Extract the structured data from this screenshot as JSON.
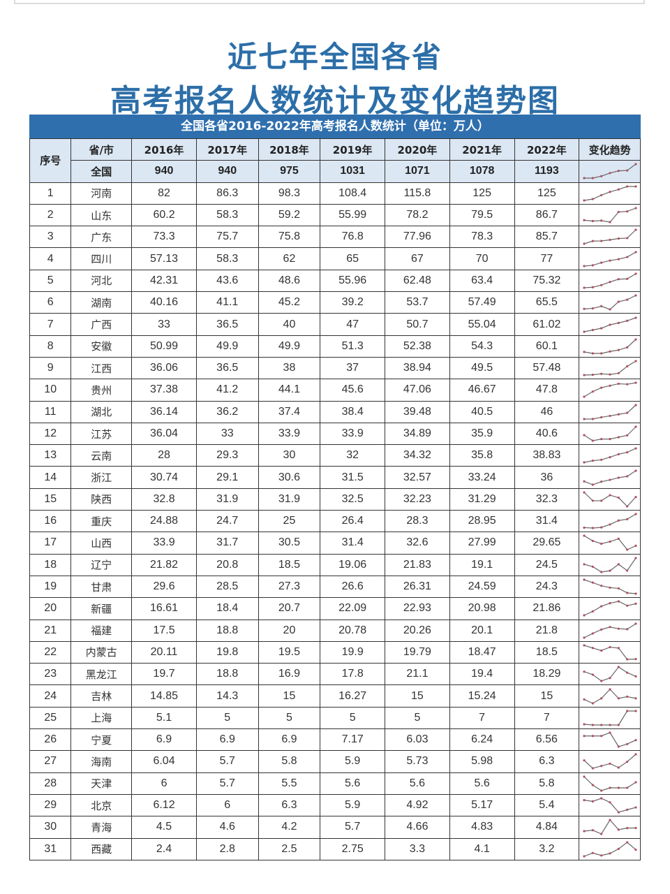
{
  "title_line1": "近七年全国各省",
  "title_line2": "高考报名人数统计及变化趋势图",
  "banner": "全国各省2016-2022年高考报名人数统计（单位：万人）",
  "header": {
    "index": "序号",
    "province": "省/市",
    "years": [
      "2016年",
      "2017年",
      "2018年",
      "2019年",
      "2020年",
      "2021年",
      "2022年"
    ],
    "trend": "变化趋势"
  },
  "national": {
    "name": "全国",
    "values": [
      "940",
      "940",
      "975",
      "1031",
      "1071",
      "1078",
      "1193"
    ]
  },
  "rows": [
    {
      "idx": "1",
      "name": "河南",
      "values": [
        "82",
        "86.3",
        "98.3",
        "108.4",
        "115.8",
        "125",
        "125"
      ]
    },
    {
      "idx": "2",
      "name": "山东",
      "values": [
        "60.2",
        "58.3",
        "59.2",
        "55.99",
        "78.2",
        "79.5",
        "86.7"
      ]
    },
    {
      "idx": "3",
      "name": "广东",
      "values": [
        "73.3",
        "75.7",
        "75.8",
        "76.8",
        "77.96",
        "78.3",
        "85.7"
      ]
    },
    {
      "idx": "4",
      "name": "四川",
      "values": [
        "57.13",
        "58.3",
        "62",
        "65",
        "67",
        "70",
        "77"
      ]
    },
    {
      "idx": "5",
      "name": "河北",
      "values": [
        "42.31",
        "43.6",
        "48.6",
        "55.96",
        "62.48",
        "63.4",
        "75.32"
      ]
    },
    {
      "idx": "6",
      "name": "湖南",
      "values": [
        "40.16",
        "41.1",
        "45.2",
        "39.2",
        "53.7",
        "57.49",
        "65.5"
      ]
    },
    {
      "idx": "7",
      "name": "广西",
      "values": [
        "33",
        "36.5",
        "40",
        "47",
        "50.7",
        "55.04",
        "61.02"
      ]
    },
    {
      "idx": "8",
      "name": "安徽",
      "values": [
        "50.99",
        "49.9",
        "49.9",
        "51.3",
        "52.38",
        "54.3",
        "60.1"
      ]
    },
    {
      "idx": "9",
      "name": "江西",
      "values": [
        "36.06",
        "36.5",
        "38",
        "37",
        "38.94",
        "49.5",
        "57.48"
      ]
    },
    {
      "idx": "10",
      "name": "贵州",
      "values": [
        "37.38",
        "41.2",
        "44.1",
        "45.6",
        "47.06",
        "46.67",
        "47.8"
      ]
    },
    {
      "idx": "11",
      "name": "湖北",
      "values": [
        "36.14",
        "36.2",
        "37.4",
        "38.4",
        "39.48",
        "40.5",
        "46"
      ]
    },
    {
      "idx": "12",
      "name": "江苏",
      "values": [
        "36.04",
        "33",
        "33.9",
        "33.9",
        "34.89",
        "35.9",
        "40.6"
      ]
    },
    {
      "idx": "13",
      "name": "云南",
      "values": [
        "28",
        "29.3",
        "30",
        "32",
        "34.32",
        "35.8",
        "38.83"
      ]
    },
    {
      "idx": "14",
      "name": "浙江",
      "values": [
        "30.74",
        "29.1",
        "30.6",
        "31.5",
        "32.57",
        "33.24",
        "36"
      ]
    },
    {
      "idx": "15",
      "name": "陕西",
      "values": [
        "32.8",
        "31.9",
        "31.9",
        "32.5",
        "32.23",
        "31.29",
        "32.3"
      ]
    },
    {
      "idx": "16",
      "name": "重庆",
      "values": [
        "24.88",
        "24.7",
        "25",
        "26.4",
        "28.3",
        "28.95",
        "31.4"
      ]
    },
    {
      "idx": "17",
      "name": "山西",
      "values": [
        "33.9",
        "31.7",
        "30.5",
        "31.4",
        "32.6",
        "27.99",
        "29.65"
      ]
    },
    {
      "idx": "18",
      "name": "辽宁",
      "values": [
        "21.82",
        "20.8",
        "18.5",
        "19.06",
        "21.83",
        "19.1",
        "24.5"
      ]
    },
    {
      "idx": "19",
      "name": "甘肃",
      "values": [
        "29.6",
        "28.5",
        "27.3",
        "26.6",
        "26.31",
        "24.59",
        "24.3"
      ]
    },
    {
      "idx": "20",
      "name": "新疆",
      "values": [
        "16.61",
        "18.4",
        "20.7",
        "22.09",
        "22.93",
        "20.98",
        "21.86"
      ]
    },
    {
      "idx": "21",
      "name": "福建",
      "values": [
        "17.5",
        "18.8",
        "20",
        "20.78",
        "20.26",
        "20.1",
        "21.8"
      ]
    },
    {
      "idx": "22",
      "name": "内蒙古",
      "values": [
        "20.11",
        "19.8",
        "19.5",
        "19.9",
        "19.79",
        "18.47",
        "18.5"
      ]
    },
    {
      "idx": "23",
      "name": "黑龙江",
      "values": [
        "19.7",
        "18.8",
        "16.9",
        "17.8",
        "21.1",
        "19.4",
        "18.29"
      ]
    },
    {
      "idx": "24",
      "name": "吉林",
      "values": [
        "14.85",
        "14.3",
        "15",
        "16.27",
        "15",
        "15.24",
        "15"
      ]
    },
    {
      "idx": "25",
      "name": "上海",
      "values": [
        "5.1",
        "5",
        "5",
        "5",
        "5",
        "7",
        "7"
      ]
    },
    {
      "idx": "26",
      "name": "宁夏",
      "values": [
        "6.9",
        "6.9",
        "6.9",
        "7.17",
        "6.03",
        "6.24",
        "6.56"
      ]
    },
    {
      "idx": "27",
      "name": "海南",
      "values": [
        "6.04",
        "5.7",
        "5.8",
        "5.9",
        "5.73",
        "5.98",
        "6.3"
      ]
    },
    {
      "idx": "28",
      "name": "天津",
      "values": [
        "6",
        "5.7",
        "5.5",
        "5.6",
        "5.6",
        "5.6",
        "5.8"
      ]
    },
    {
      "idx": "29",
      "name": "北京",
      "values": [
        "6.12",
        "6",
        "6.3",
        "5.9",
        "4.92",
        "5.17",
        "5.4"
      ]
    },
    {
      "idx": "30",
      "name": "青海",
      "values": [
        "4.5",
        "4.6",
        "4.2",
        "5.7",
        "4.66",
        "4.83",
        "4.84"
      ]
    },
    {
      "idx": "31",
      "name": "西藏",
      "values": [
        "2.4",
        "2.8",
        "2.5",
        "2.75",
        "3.3",
        "4.1",
        "3.2"
      ]
    }
  ],
  "colors": {
    "title": "#2c6ea8",
    "banner": "#2f6fae",
    "header_bg": "#dbe7f3",
    "spark_line": "#666666",
    "spark_dot": "#b05060"
  },
  "chart_data": {
    "type": "table",
    "title": "近七年全国各省高考报名人数统计及变化趋势图",
    "subtitle": "全国各省2016-2022年高考报名人数统计（单位：万人）",
    "categories": [
      "2016",
      "2017",
      "2018",
      "2019",
      "2020",
      "2021",
      "2022"
    ],
    "unit": "万人",
    "series": [
      {
        "name": "全国",
        "values": [
          940,
          940,
          975,
          1031,
          1071,
          1078,
          1193
        ]
      },
      {
        "name": "河南",
        "values": [
          82,
          86.3,
          98.3,
          108.4,
          115.8,
          125,
          125
        ]
      },
      {
        "name": "山东",
        "values": [
          60.2,
          58.3,
          59.2,
          55.99,
          78.2,
          79.5,
          86.7
        ]
      },
      {
        "name": "广东",
        "values": [
          73.3,
          75.7,
          75.8,
          76.8,
          77.96,
          78.3,
          85.7
        ]
      },
      {
        "name": "四川",
        "values": [
          57.13,
          58.3,
          62,
          65,
          67,
          70,
          77
        ]
      },
      {
        "name": "河北",
        "values": [
          42.31,
          43.6,
          48.6,
          55.96,
          62.48,
          63.4,
          75.32
        ]
      },
      {
        "name": "湖南",
        "values": [
          40.16,
          41.1,
          45.2,
          39.2,
          53.7,
          57.49,
          65.5
        ]
      },
      {
        "name": "广西",
        "values": [
          33,
          36.5,
          40,
          47,
          50.7,
          55.04,
          61.02
        ]
      },
      {
        "name": "安徽",
        "values": [
          50.99,
          49.9,
          49.9,
          51.3,
          52.38,
          54.3,
          60.1
        ]
      },
      {
        "name": "江西",
        "values": [
          36.06,
          36.5,
          38,
          37,
          38.94,
          49.5,
          57.48
        ]
      },
      {
        "name": "贵州",
        "values": [
          37.38,
          41.2,
          44.1,
          45.6,
          47.06,
          46.67,
          47.8
        ]
      },
      {
        "name": "湖北",
        "values": [
          36.14,
          36.2,
          37.4,
          38.4,
          39.48,
          40.5,
          46
        ]
      },
      {
        "name": "江苏",
        "values": [
          36.04,
          33,
          33.9,
          33.9,
          34.89,
          35.9,
          40.6
        ]
      },
      {
        "name": "云南",
        "values": [
          28,
          29.3,
          30,
          32,
          34.32,
          35.8,
          38.83
        ]
      },
      {
        "name": "浙江",
        "values": [
          30.74,
          29.1,
          30.6,
          31.5,
          32.57,
          33.24,
          36
        ]
      },
      {
        "name": "陕西",
        "values": [
          32.8,
          31.9,
          31.9,
          32.5,
          32.23,
          31.29,
          32.3
        ]
      },
      {
        "name": "重庆",
        "values": [
          24.88,
          24.7,
          25,
          26.4,
          28.3,
          28.95,
          31.4
        ]
      },
      {
        "name": "山西",
        "values": [
          33.9,
          31.7,
          30.5,
          31.4,
          32.6,
          27.99,
          29.65
        ]
      },
      {
        "name": "辽宁",
        "values": [
          21.82,
          20.8,
          18.5,
          19.06,
          21.83,
          19.1,
          24.5
        ]
      },
      {
        "name": "甘肃",
        "values": [
          29.6,
          28.5,
          27.3,
          26.6,
          26.31,
          24.59,
          24.3
        ]
      },
      {
        "name": "新疆",
        "values": [
          16.61,
          18.4,
          20.7,
          22.09,
          22.93,
          20.98,
          21.86
        ]
      },
      {
        "name": "福建",
        "values": [
          17.5,
          18.8,
          20,
          20.78,
          20.26,
          20.1,
          21.8
        ]
      },
      {
        "name": "内蒙古",
        "values": [
          20.11,
          19.8,
          19.5,
          19.9,
          19.79,
          18.47,
          18.5
        ]
      },
      {
        "name": "黑龙江",
        "values": [
          19.7,
          18.8,
          16.9,
          17.8,
          21.1,
          19.4,
          18.29
        ]
      },
      {
        "name": "吉林",
        "values": [
          14.85,
          14.3,
          15,
          16.27,
          15,
          15.24,
          15
        ]
      },
      {
        "name": "上海",
        "values": [
          5.1,
          5,
          5,
          5,
          5,
          7,
          7
        ]
      },
      {
        "name": "宁夏",
        "values": [
          6.9,
          6.9,
          6.9,
          7.17,
          6.03,
          6.24,
          6.56
        ]
      },
      {
        "name": "海南",
        "values": [
          6.04,
          5.7,
          5.8,
          5.9,
          5.73,
          5.98,
          6.3
        ]
      },
      {
        "name": "天津",
        "values": [
          6,
          5.7,
          5.5,
          5.6,
          5.6,
          5.6,
          5.8
        ]
      },
      {
        "name": "北京",
        "values": [
          6.12,
          6,
          6.3,
          5.9,
          4.92,
          5.17,
          5.4
        ]
      },
      {
        "name": "青海",
        "values": [
          4.5,
          4.6,
          4.2,
          5.7,
          4.66,
          4.83,
          4.84
        ]
      },
      {
        "name": "西藏",
        "values": [
          2.4,
          2.8,
          2.5,
          2.75,
          3.3,
          4.1,
          3.2
        ]
      }
    ]
  }
}
